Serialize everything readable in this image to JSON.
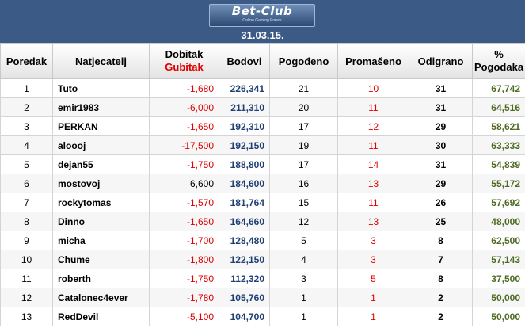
{
  "header": {
    "logo_text": "Bet-Club",
    "logo_subtitle": "Online Gaming Forum",
    "date": "31.03.15."
  },
  "columns": {
    "rank": "Poredak",
    "name": "Natjecatelj",
    "profit_line1": "Dobitak",
    "profit_line2": "Gubitak",
    "points": "Bodovi",
    "hits": "Pogođeno",
    "misses": "Promašeno",
    "played": "Odigrano",
    "pct_line1": "%",
    "pct_line2": "Pogodaka"
  },
  "colors": {
    "banner": "#3b5a85",
    "loss": "#e00000",
    "points": "#1f3f74",
    "misses": "#e00000",
    "percentage": "#4f6a22",
    "header_loss": "#e00000"
  },
  "rows": [
    {
      "rank": "1",
      "name": "Tuto",
      "profit": "-1,680",
      "points": "226,341",
      "hits": "21",
      "misses": "10",
      "played": "31",
      "pct": "67,742"
    },
    {
      "rank": "2",
      "name": "emir1983",
      "profit": "-6,000",
      "points": "211,310",
      "hits": "20",
      "misses": "11",
      "played": "31",
      "pct": "64,516"
    },
    {
      "rank": "3",
      "name": "PERKAN",
      "profit": "-1,650",
      "points": "192,310",
      "hits": "17",
      "misses": "12",
      "played": "29",
      "pct": "58,621"
    },
    {
      "rank": "4",
      "name": "aloooj",
      "profit": "-17,500",
      "points": "192,150",
      "hits": "19",
      "misses": "11",
      "played": "30",
      "pct": "63,333"
    },
    {
      "rank": "5",
      "name": "dejan55",
      "profit": "-1,750",
      "points": "188,800",
      "hits": "17",
      "misses": "14",
      "played": "31",
      "pct": "54,839"
    },
    {
      "rank": "6",
      "name": "mostovoj",
      "profit": "6,600",
      "points": "184,600",
      "hits": "16",
      "misses": "13",
      "played": "29",
      "pct": "55,172"
    },
    {
      "rank": "7",
      "name": "rockytomas",
      "profit": "-1,570",
      "points": "181,764",
      "hits": "15",
      "misses": "11",
      "played": "26",
      "pct": "57,692"
    },
    {
      "rank": "8",
      "name": "Dinno",
      "profit": "-1,650",
      "points": "164,660",
      "hits": "12",
      "misses": "13",
      "played": "25",
      "pct": "48,000"
    },
    {
      "rank": "9",
      "name": "micha",
      "profit": "-1,700",
      "points": "128,480",
      "hits": "5",
      "misses": "3",
      "played": "8",
      "pct": "62,500"
    },
    {
      "rank": "10",
      "name": "Chume",
      "profit": "-1,800",
      "points": "122,150",
      "hits": "4",
      "misses": "3",
      "played": "7",
      "pct": "57,143"
    },
    {
      "rank": "11",
      "name": "roberth",
      "profit": "-1,750",
      "points": "112,320",
      "hits": "3",
      "misses": "5",
      "played": "8",
      "pct": "37,500"
    },
    {
      "rank": "12",
      "name": "Catalonec4ever",
      "profit": "-1,780",
      "points": "105,760",
      "hits": "1",
      "misses": "1",
      "played": "2",
      "pct": "50,000"
    },
    {
      "rank": "13",
      "name": "RedDevil",
      "profit": "-5,100",
      "points": "104,700",
      "hits": "1",
      "misses": "1",
      "played": "2",
      "pct": "50,000"
    }
  ]
}
